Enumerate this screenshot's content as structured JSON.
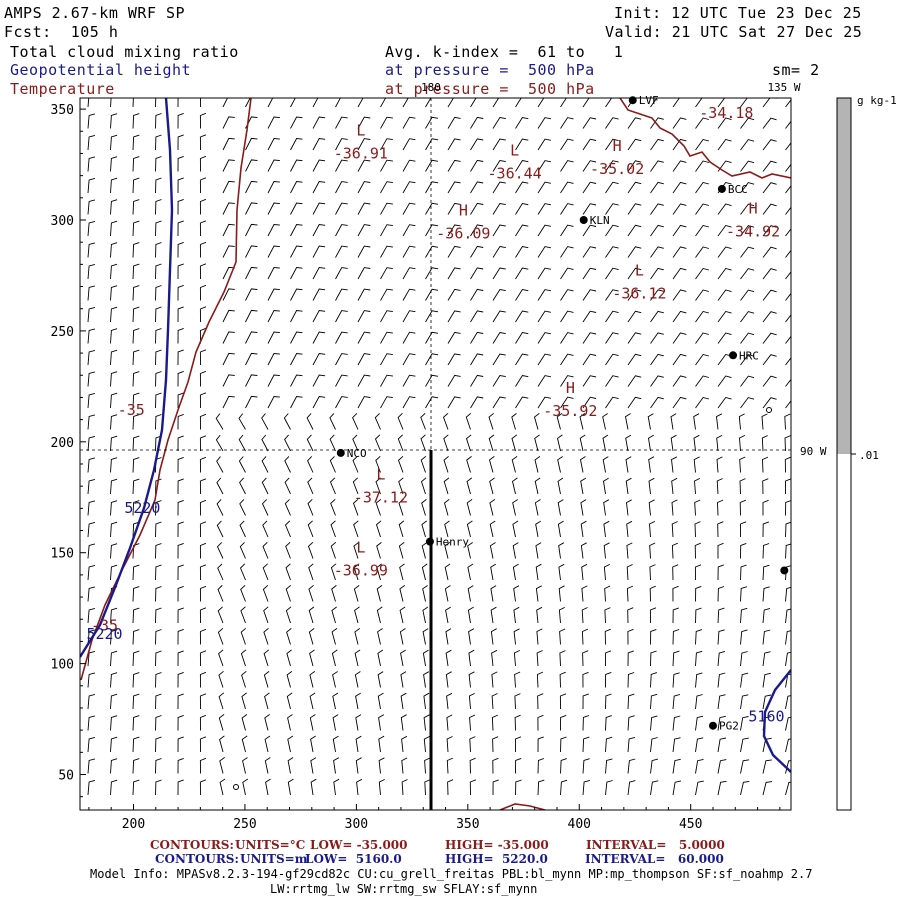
{
  "header": {
    "model": "AMPS 2.67-km WRF SP",
    "forecast": "Fcst:  105 h",
    "init": "Init: 12 UTC Tue 23 Dec 25",
    "valid": "Valid: 21 UTC Sat 27 Dec 25"
  },
  "fields": {
    "f1": "Total cloud mixing ratio",
    "f2": "Geopotential height",
    "f3": "Temperature",
    "avg": "Avg. k-index =  61 to   1",
    "p1": "at pressure =  500 hPa",
    "p2": "at pressure =  500 hPa",
    "smooth": "sm= 2"
  },
  "colors": {
    "geopotential": "#1a1a8c",
    "temperature": "#8b1a1a",
    "colorbar_fill": "#b4b4b4"
  },
  "chart_data": {
    "type": "contour",
    "x_axis": {
      "ticks": [
        "200",
        "250",
        "300",
        "350",
        "400",
        "450"
      ],
      "range": [
        176,
        495
      ]
    },
    "y_axis": {
      "ticks": [
        "50",
        "100",
        "150",
        "200",
        "250",
        "300",
        "350"
      ],
      "range": [
        34,
        355
      ]
    },
    "reference_lines": {
      "lon_180": "180",
      "lon_135w": "135 W",
      "lon_90w": "90 W"
    },
    "stations": [
      {
        "name": "LVF",
        "x": 424,
        "y": 354
      },
      {
        "name": "BCC",
        "x": 464,
        "y": 314
      },
      {
        "name": "KLN",
        "x": 402,
        "y": 300
      },
      {
        "name": "HRC",
        "x": 469,
        "y": 239
      },
      {
        "name": "NCO",
        "x": 293,
        "y": 195
      },
      {
        "name": "Henry",
        "x": 333,
        "y": 155
      },
      {
        "name": "PG2",
        "x": 460,
        "y": 72
      },
      {
        "name": "",
        "x": 492,
        "y": 142
      }
    ],
    "temperature_extrema": [
      {
        "type": "L",
        "value": "-36.91",
        "x": 302,
        "y": 338
      },
      {
        "type": "L",
        "value": "-36.44",
        "x": 371,
        "y": 329
      },
      {
        "type": "H",
        "value": "-35.02",
        "x": 417,
        "y": 331
      },
      {
        "type": "H",
        "value": "-36.09",
        "x": 348,
        "y": 302
      },
      {
        "type": "H",
        "value": "-34.92",
        "x": 478,
        "y": 303
      },
      {
        "type": "L",
        "value": "-36.12",
        "x": 427,
        "y": 275
      },
      {
        "type": "H",
        "value": "-35.92",
        "x": 396,
        "y": 222
      },
      {
        "type": "L",
        "value": "-37.12",
        "x": 311,
        "y": 183
      },
      {
        "type": "L",
        "value": "-36.99",
        "x": 302,
        "y": 150
      }
    ],
    "contour_labels": [
      {
        "text": "-35",
        "color": "temperature",
        "x": 199,
        "y": 212
      },
      {
        "text": "-35",
        "color": "temperature",
        "x": 187,
        "y": 115
      },
      {
        "text": "-34.18",
        "color": "temperature",
        "x": 466,
        "y": 346
      },
      {
        "text": "5220",
        "color": "geopotential",
        "x": 204,
        "y": 168
      },
      {
        "text": "5220",
        "color": "geopotential",
        "x": 187,
        "y": 111
      },
      {
        "text": "5160",
        "color": "geopotential",
        "x": 484,
        "y": 74
      }
    ],
    "colorbar": {
      "unit": "g kg-1",
      "label": ".01"
    }
  },
  "footer": {
    "c1_label": "CONTOURS:",
    "c1_units": "UNITS=°C",
    "c1_low": "LOW= -35.000",
    "c1_high": "HIGH= -35.000",
    "c1_int": "INTERVAL=   5.0000",
    "c2_label": "CONTOURS:",
    "c2_units": "UNITS=m",
    "c2_low": "LOW=  5160.0",
    "c2_high": "HIGH=  5220.0",
    "c2_int": "INTERVAL=   60.000",
    "info1": "Model Info: MPASv8.2.3-194-gf29cd82c CU:cu_grell_freitas PBL:bl_mynn MP:mp_thompson SF:sf_noahmp 2.7",
    "info2": "LW:rrtmg_lw SW:rrtmg_sw SFLAY:sf_mynn"
  }
}
